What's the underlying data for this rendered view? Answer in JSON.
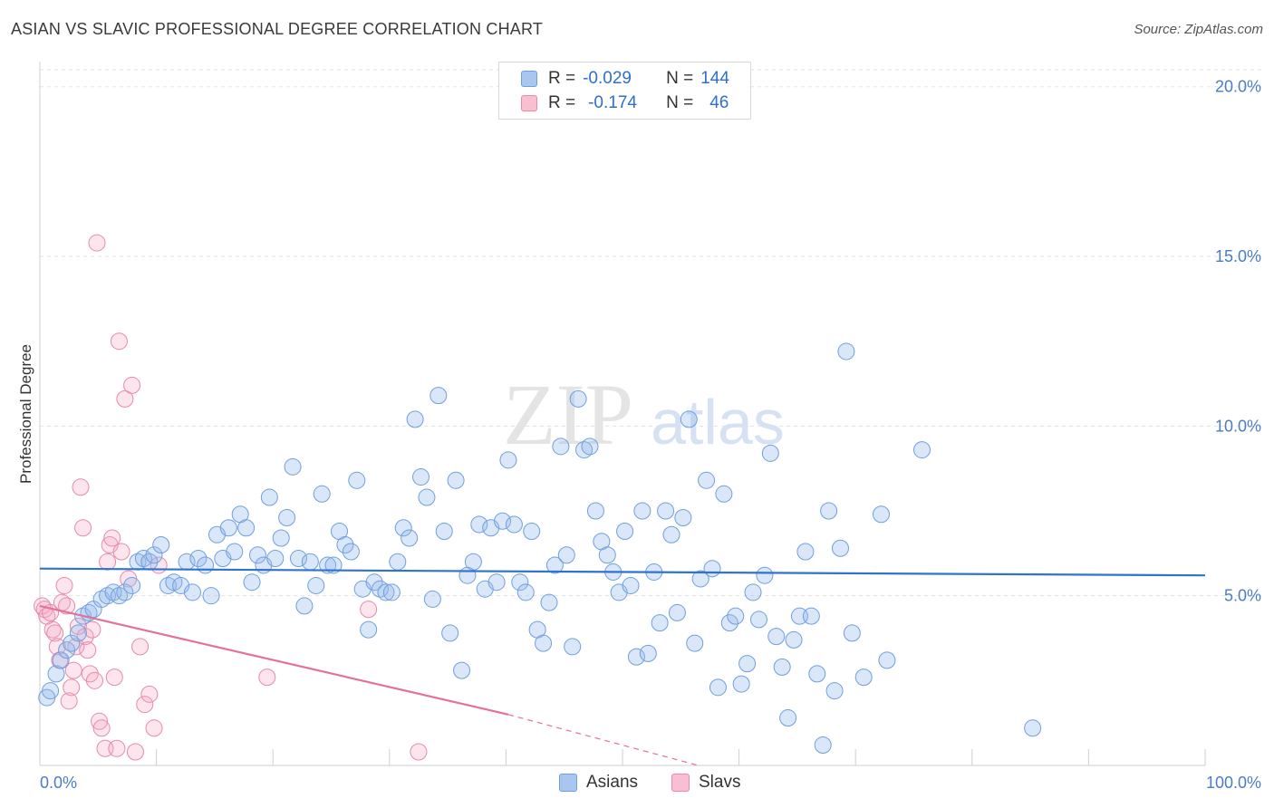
{
  "title": "ASIAN VS SLAVIC PROFESSIONAL DEGREE CORRELATION CHART",
  "source": "Source: ZipAtlas.com",
  "watermark": {
    "zip": "ZIP",
    "atlas": "atlas"
  },
  "legend_top": [
    {
      "r_label": "R =",
      "r_value": "-0.029",
      "n_label": "N =",
      "n_value": "144",
      "color": "#a9c6ef",
      "border": "#6f9fdd"
    },
    {
      "r_label": "R =",
      "r_value": "-0.174",
      "n_label": "N =",
      "n_value": "46",
      "color": "#f7bfd0",
      "border": "#e88aa8"
    }
  ],
  "legend_bottom": [
    {
      "label": "Asians",
      "color": "#a9c6ef",
      "border": "#6f9fdd"
    },
    {
      "label": "Slavs",
      "color": "#f7bfd0",
      "border": "#e88aa8"
    }
  ],
  "colors": {
    "asian_fill": "rgba(150,185,235,0.35)",
    "asian_stroke": "#6f9fdd",
    "asian_line": "#2f72d0",
    "slav_fill": "rgba(245,170,195,0.30)",
    "slav_stroke": "#e88aa8",
    "slav_line": "#e4719a",
    "grid": "#e3e3e3",
    "axis": "#cfcfcf",
    "tick_text": "#4a7cc9"
  },
  "chart_data": {
    "type": "scatter",
    "title": "ASIAN VS SLAVIC PROFESSIONAL DEGREE CORRELATION CHART",
    "xlabel": "",
    "ylabel": "Professional Degree",
    "xlim": [
      0,
      100
    ],
    "ylim": [
      0,
      20.5
    ],
    "x_tick_labels": [
      "0.0%",
      "100.0%"
    ],
    "y_ticks": [
      5,
      10,
      15,
      20
    ],
    "y_tick_labels": [
      "5.0%",
      "10.0%",
      "15.0%",
      "20.0%"
    ],
    "grid": true,
    "legend_position": "top-center",
    "series": [
      {
        "name": "Asians",
        "trend": {
          "x": [
            0,
            100
          ],
          "y": [
            5.8,
            5.6
          ]
        },
        "points": [
          [
            0.6,
            2.0
          ],
          [
            0.9,
            2.2
          ],
          [
            1.4,
            2.7
          ],
          [
            1.8,
            3.1
          ],
          [
            2.3,
            3.4
          ],
          [
            2.7,
            3.6
          ],
          [
            3.3,
            3.9
          ],
          [
            3.7,
            4.4
          ],
          [
            4.2,
            4.5
          ],
          [
            4.6,
            4.6
          ],
          [
            5.3,
            4.9
          ],
          [
            5.8,
            5.0
          ],
          [
            6.3,
            5.1
          ],
          [
            6.8,
            5.0
          ],
          [
            7.3,
            5.1
          ],
          [
            7.9,
            5.3
          ],
          [
            8.4,
            6.0
          ],
          [
            8.9,
            6.1
          ],
          [
            9.4,
            6.0
          ],
          [
            9.8,
            6.2
          ],
          [
            10.4,
            6.5
          ],
          [
            11.0,
            5.3
          ],
          [
            11.5,
            5.4
          ],
          [
            12.1,
            5.3
          ],
          [
            12.6,
            6.0
          ],
          [
            13.1,
            5.1
          ],
          [
            13.6,
            6.1
          ],
          [
            14.2,
            5.9
          ],
          [
            14.7,
            5.0
          ],
          [
            15.2,
            6.8
          ],
          [
            15.7,
            6.1
          ],
          [
            16.2,
            7.0
          ],
          [
            16.7,
            6.3
          ],
          [
            17.2,
            7.4
          ],
          [
            17.7,
            7.0
          ],
          [
            18.2,
            5.4
          ],
          [
            18.7,
            6.2
          ],
          [
            19.2,
            5.9
          ],
          [
            19.7,
            7.9
          ],
          [
            20.2,
            6.1
          ],
          [
            20.7,
            6.7
          ],
          [
            21.2,
            7.3
          ],
          [
            21.7,
            8.8
          ],
          [
            22.2,
            6.1
          ],
          [
            22.7,
            4.7
          ],
          [
            23.2,
            6.0
          ],
          [
            23.7,
            5.3
          ],
          [
            24.2,
            8.0
          ],
          [
            24.7,
            5.9
          ],
          [
            25.2,
            5.9
          ],
          [
            25.7,
            6.9
          ],
          [
            26.2,
            6.5
          ],
          [
            26.7,
            6.3
          ],
          [
            27.2,
            8.4
          ],
          [
            27.7,
            5.2
          ],
          [
            28.2,
            4.0
          ],
          [
            28.7,
            5.4
          ],
          [
            29.2,
            5.2
          ],
          [
            29.7,
            5.1
          ],
          [
            30.2,
            5.1
          ],
          [
            30.7,
            6.0
          ],
          [
            31.2,
            7.0
          ],
          [
            31.7,
            6.7
          ],
          [
            32.2,
            10.2
          ],
          [
            32.7,
            8.5
          ],
          [
            33.2,
            7.9
          ],
          [
            33.7,
            4.9
          ],
          [
            34.2,
            10.9
          ],
          [
            34.7,
            6.9
          ],
          [
            35.2,
            3.9
          ],
          [
            35.7,
            8.4
          ],
          [
            36.2,
            2.8
          ],
          [
            36.7,
            5.6
          ],
          [
            37.2,
            6.0
          ],
          [
            37.7,
            7.1
          ],
          [
            38.2,
            5.2
          ],
          [
            38.7,
            7.0
          ],
          [
            39.2,
            5.4
          ],
          [
            39.7,
            7.2
          ],
          [
            40.2,
            9.0
          ],
          [
            40.7,
            7.1
          ],
          [
            41.2,
            5.4
          ],
          [
            41.7,
            5.1
          ],
          [
            42.2,
            6.9
          ],
          [
            42.7,
            4.0
          ],
          [
            43.2,
            3.6
          ],
          [
            43.7,
            4.8
          ],
          [
            44.2,
            5.9
          ],
          [
            44.7,
            9.4
          ],
          [
            45.2,
            6.2
          ],
          [
            45.7,
            3.5
          ],
          [
            46.2,
            10.8
          ],
          [
            46.7,
            9.3
          ],
          [
            47.2,
            9.4
          ],
          [
            47.7,
            7.5
          ],
          [
            48.2,
            6.6
          ],
          [
            48.7,
            6.2
          ],
          [
            49.2,
            5.7
          ],
          [
            49.7,
            5.1
          ],
          [
            50.2,
            6.9
          ],
          [
            50.7,
            5.3
          ],
          [
            51.2,
            3.2
          ],
          [
            51.7,
            7.5
          ],
          [
            52.2,
            3.3
          ],
          [
            52.7,
            5.7
          ],
          [
            53.2,
            4.2
          ],
          [
            53.7,
            7.5
          ],
          [
            54.2,
            6.8
          ],
          [
            54.7,
            4.5
          ],
          [
            55.2,
            7.3
          ],
          [
            55.7,
            10.2
          ],
          [
            56.2,
            3.6
          ],
          [
            56.7,
            5.5
          ],
          [
            57.2,
            8.4
          ],
          [
            57.7,
            5.8
          ],
          [
            58.2,
            2.3
          ],
          [
            58.7,
            8.0
          ],
          [
            59.2,
            4.2
          ],
          [
            59.7,
            4.4
          ],
          [
            60.2,
            2.4
          ],
          [
            60.7,
            3.0
          ],
          [
            61.2,
            5.1
          ],
          [
            61.7,
            4.3
          ],
          [
            62.2,
            5.6
          ],
          [
            62.7,
            9.2
          ],
          [
            63.2,
            3.8
          ],
          [
            63.7,
            2.9
          ],
          [
            64.2,
            1.4
          ],
          [
            64.7,
            3.7
          ],
          [
            65.2,
            4.4
          ],
          [
            65.7,
            6.3
          ],
          [
            66.2,
            4.4
          ],
          [
            66.7,
            2.7
          ],
          [
            67.2,
            0.6
          ],
          [
            67.7,
            7.5
          ],
          [
            68.2,
            2.2
          ],
          [
            68.7,
            6.4
          ],
          [
            69.2,
            12.2
          ],
          [
            69.7,
            3.9
          ],
          [
            70.7,
            2.6
          ],
          [
            72.2,
            7.4
          ],
          [
            72.7,
            3.1
          ],
          [
            75.7,
            9.3
          ],
          [
            85.2,
            1.1
          ]
        ]
      },
      {
        "name": "Slavs",
        "trend": {
          "x": [
            0,
            40.2
          ],
          "y": [
            4.7,
            1.5
          ],
          "dashed_to": [
            56.5,
            0
          ]
        },
        "points": [
          [
            0.2,
            4.7
          ],
          [
            0.4,
            4.6
          ],
          [
            0.6,
            4.4
          ],
          [
            0.9,
            4.5
          ],
          [
            1.1,
            4.0
          ],
          [
            1.3,
            3.9
          ],
          [
            1.5,
            3.5
          ],
          [
            1.7,
            3.1
          ],
          [
            1.9,
            4.8
          ],
          [
            2.1,
            5.3
          ],
          [
            2.3,
            4.7
          ],
          [
            2.5,
            1.9
          ],
          [
            2.7,
            2.3
          ],
          [
            2.9,
            2.8
          ],
          [
            3.1,
            3.5
          ],
          [
            3.3,
            4.1
          ],
          [
            3.5,
            8.2
          ],
          [
            3.7,
            7.0
          ],
          [
            3.9,
            3.8
          ],
          [
            4.1,
            3.4
          ],
          [
            4.3,
            2.7
          ],
          [
            4.5,
            4.0
          ],
          [
            4.7,
            2.5
          ],
          [
            4.9,
            15.4
          ],
          [
            5.1,
            1.3
          ],
          [
            5.3,
            1.1
          ],
          [
            5.6,
            0.5
          ],
          [
            5.8,
            6.0
          ],
          [
            6.0,
            6.5
          ],
          [
            6.2,
            6.7
          ],
          [
            6.4,
            2.6
          ],
          [
            6.6,
            0.5
          ],
          [
            6.8,
            12.5
          ],
          [
            7.0,
            6.3
          ],
          [
            7.3,
            10.8
          ],
          [
            7.6,
            5.5
          ],
          [
            7.9,
            11.2
          ],
          [
            8.2,
            0.4
          ],
          [
            8.6,
            3.5
          ],
          [
            9.0,
            1.8
          ],
          [
            9.4,
            2.1
          ],
          [
            9.8,
            1.1
          ],
          [
            10.2,
            5.9
          ],
          [
            19.5,
            2.6
          ],
          [
            28.2,
            4.6
          ],
          [
            32.5,
            0.4
          ]
        ]
      }
    ]
  }
}
